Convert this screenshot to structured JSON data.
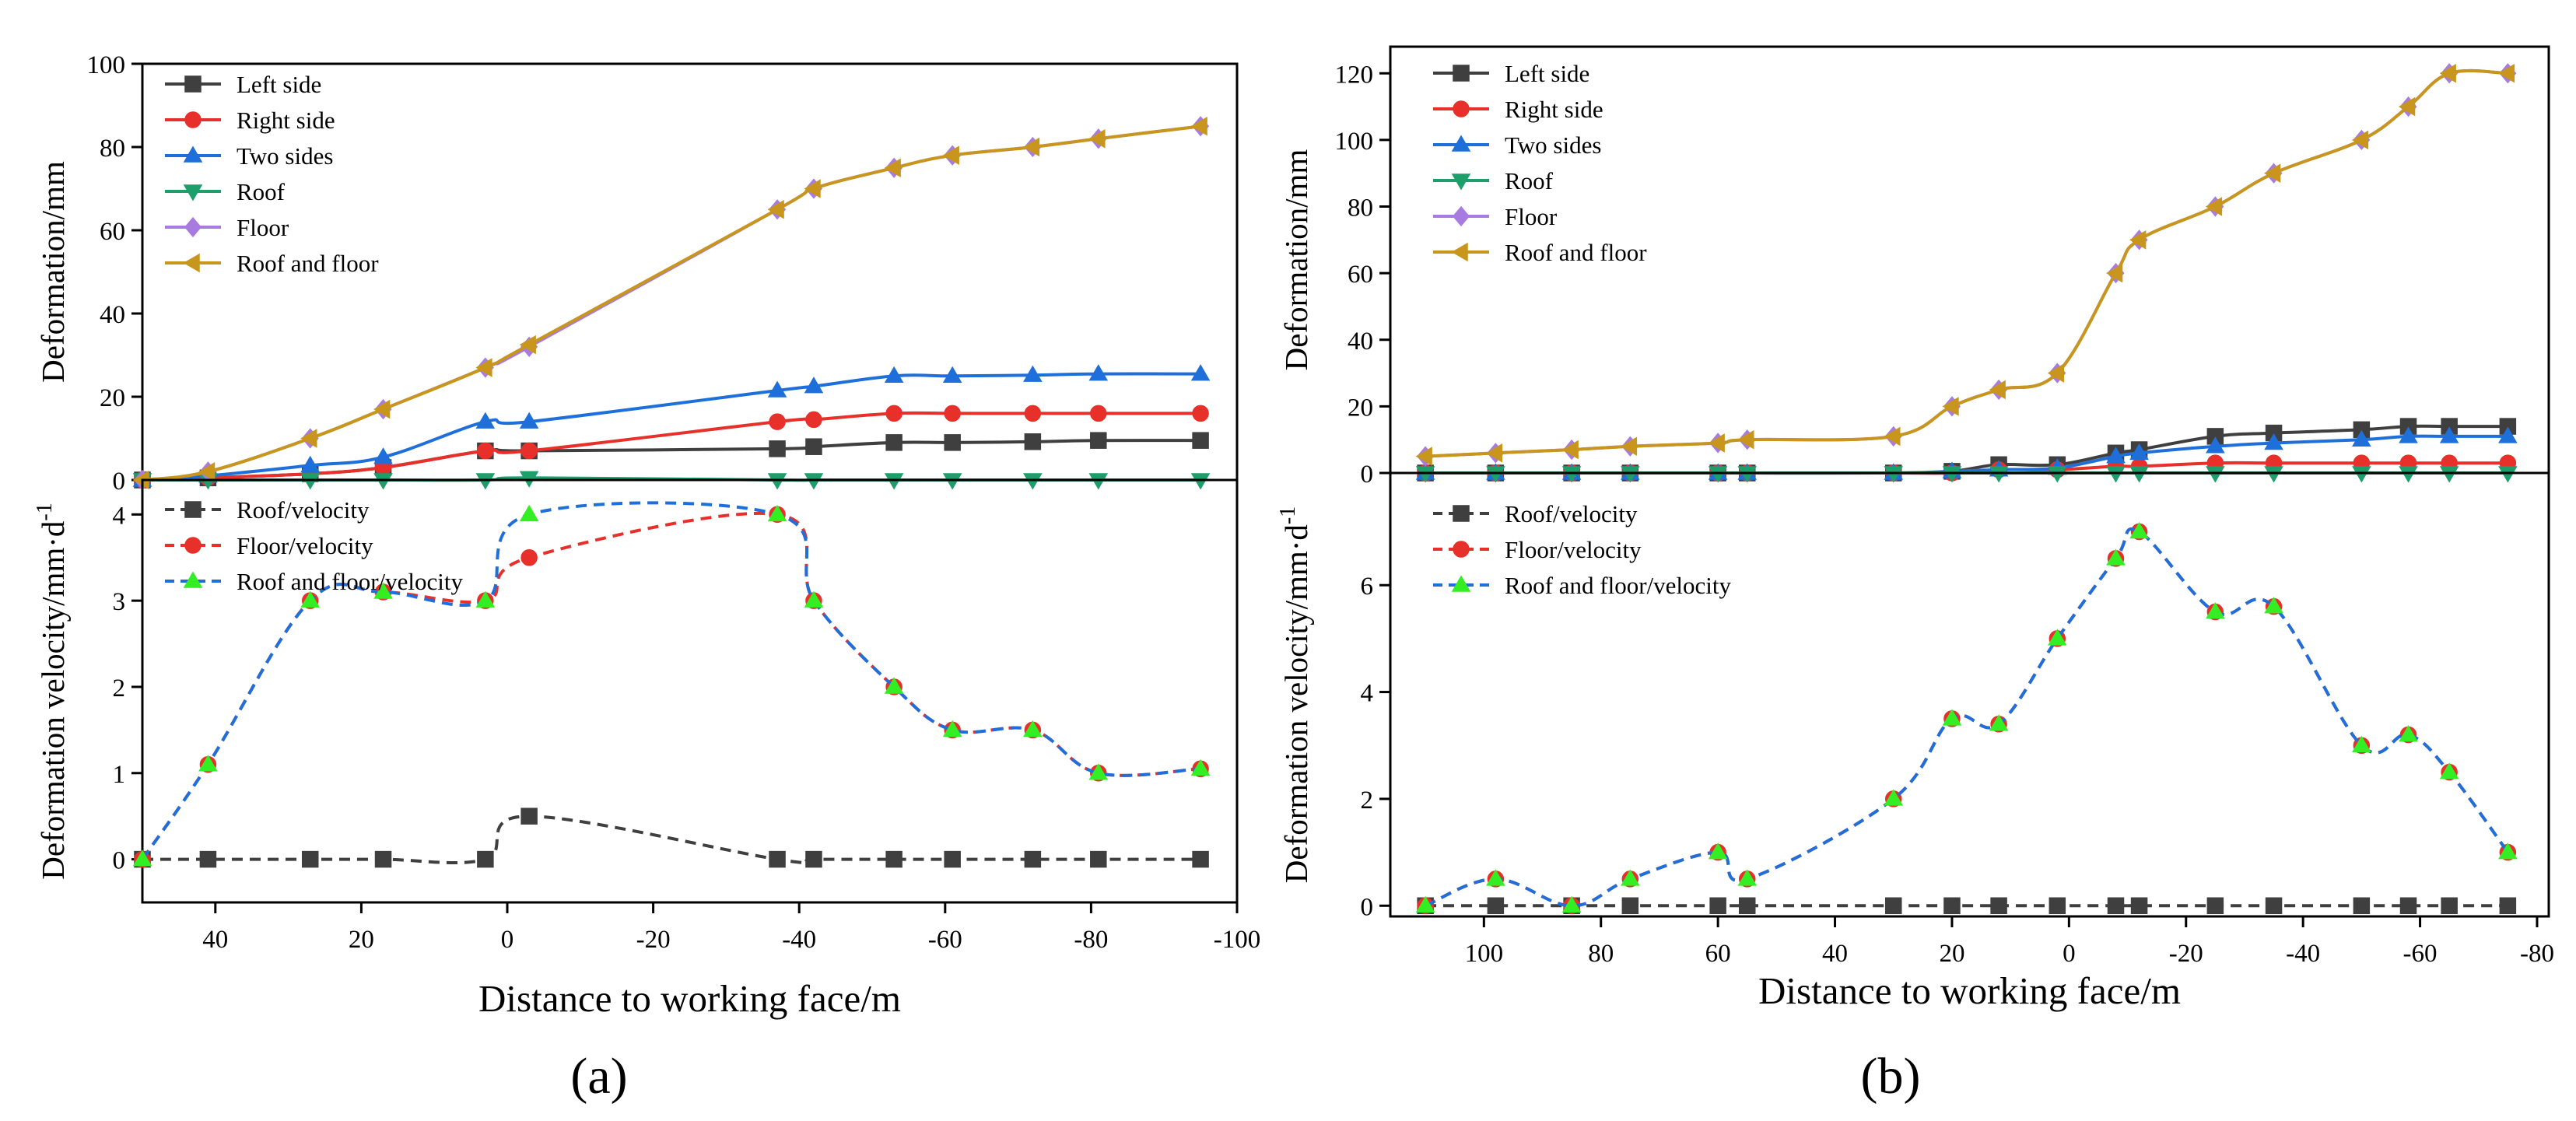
{
  "chart_data": [
    {
      "panel": "(a)",
      "type": "line",
      "xlabel": "Distance to working face/m",
      "x_reversed": true,
      "xlim": [
        50,
        -100
      ],
      "xticks": [
        "40",
        "20",
        "0",
        "-20",
        "-40",
        "-60",
        "-80",
        "-100"
      ],
      "top": {
        "ylabel": "Deformation/mm",
        "ylim": [
          0,
          100
        ],
        "yticks": [
          "0",
          "20",
          "40",
          "60",
          "80",
          "100"
        ],
        "legend_position": "top-left",
        "series": [
          {
            "name": "Left side",
            "color": "#3f3f3f",
            "marker": "square",
            "x": [
              50,
              41,
              27,
              17,
              3,
              -3,
              -37,
              -42,
              -53,
              -61,
              -72,
              -81,
              -95
            ],
            "values": [
              0,
              0.5,
              1.5,
              3,
              7,
              7,
              7.5,
              8,
              9,
              9,
              9.2,
              9.5,
              9.5
            ]
          },
          {
            "name": "Right side",
            "color": "#e8302b",
            "marker": "circle",
            "x": [
              50,
              41,
              27,
              17,
              3,
              -3,
              -37,
              -42,
              -53,
              -61,
              -72,
              -81,
              -95
            ],
            "values": [
              0,
              0.5,
              1.5,
              3,
              7,
              7,
              14,
              14.5,
              16,
              16,
              16,
              16,
              16
            ]
          },
          {
            "name": "Two sides",
            "color": "#1f6fdb",
            "marker": "triangle-up",
            "x": [
              50,
              41,
              27,
              17,
              3,
              -3,
              -37,
              -42,
              -53,
              -61,
              -72,
              -81,
              -95
            ],
            "values": [
              0,
              1,
              3.5,
              5.5,
              14,
              14,
              21.5,
              22.5,
              25,
              25,
              25.2,
              25.5,
              25.5
            ]
          },
          {
            "name": "Roof",
            "color": "#1e9e6a",
            "marker": "triangle-down",
            "x": [
              50,
              41,
              27,
              17,
              3,
              -3,
              -37,
              -42,
              -53,
              -61,
              -72,
              -81,
              -95
            ],
            "values": [
              0,
              0,
              0,
              0,
              0,
              0.5,
              0,
              0,
              0,
              0,
              0,
              0,
              0
            ]
          },
          {
            "name": "Floor",
            "color": "#a77be0",
            "marker": "diamond",
            "x": [
              50,
              41,
              27,
              17,
              3,
              -3,
              -37,
              -42,
              -53,
              -61,
              -72,
              -81,
              -95
            ],
            "values": [
              0,
              2,
              10,
              17,
              27,
              32,
              65,
              70,
              75,
              78,
              80,
              82,
              85
            ]
          },
          {
            "name": "Roof and floor",
            "color": "#c8961c",
            "marker": "triangle-left",
            "x": [
              50,
              41,
              27,
              17,
              3,
              -3,
              -37,
              -42,
              -53,
              -61,
              -72,
              -81,
              -95
            ],
            "values": [
              0,
              2,
              10,
              17,
              27,
              32.5,
              65,
              70,
              75,
              78,
              80,
              82,
              85
            ]
          }
        ]
      },
      "bottom": {
        "ylabel": "Deformation velocity/mm·d",
        "ylabel_sup": "-1",
        "ylim": [
          -0.5,
          4.4
        ],
        "yticks": [
          "0",
          "1",
          "2",
          "3",
          "4"
        ],
        "legend_position": "top-left",
        "series": [
          {
            "name": "Roof/velocity",
            "color": "#3f3f3f",
            "marker": "square",
            "x": [
              50,
              41,
              27,
              17,
              3,
              -3,
              -37,
              -42,
              -53,
              -61,
              -72,
              -81,
              -95
            ],
            "values": [
              0,
              0,
              0,
              0,
              0,
              0.5,
              0,
              0,
              0,
              0,
              0,
              0,
              0
            ]
          },
          {
            "name": "Floor/velocity",
            "color": "#e8302b",
            "marker": "circle",
            "x": [
              50,
              41,
              27,
              17,
              3,
              -3,
              -37,
              -42,
              -53,
              -61,
              -72,
              -81,
              -95
            ],
            "values": [
              0,
              1.1,
              3,
              3.1,
              3,
              3.5,
              4,
              3,
              2,
              1.5,
              1.5,
              1,
              1.05
            ]
          },
          {
            "name": "Roof and floor/velocity",
            "color": "#1f6fdb",
            "marker": "triangle-up",
            "marker_fill": "#33ee22",
            "x": [
              50,
              41,
              27,
              17,
              3,
              -3,
              -37,
              -42,
              -53,
              -61,
              -72,
              -81,
              -95
            ],
            "values": [
              0,
              1.1,
              3,
              3.1,
              3,
              4,
              4,
              3,
              2,
              1.5,
              1.5,
              1,
              1.05
            ]
          }
        ]
      }
    },
    {
      "panel": "(b)",
      "type": "line",
      "xlabel": "Distance to working face/m",
      "x_reversed": true,
      "xlim": [
        116,
        -82
      ],
      "xticks": [
        "100",
        "80",
        "60",
        "40",
        "20",
        "0",
        "-20",
        "-40",
        "-60",
        "-80"
      ],
      "top": {
        "ylabel": "Deformation/mm",
        "ylim": [
          0,
          128
        ],
        "yticks": [
          "0",
          "20",
          "40",
          "60",
          "80",
          "100",
          "120"
        ],
        "legend_position": "top-left",
        "series": [
          {
            "name": "Left side",
            "color": "#3f3f3f",
            "marker": "square",
            "x": [
              110,
              98,
              85,
              75,
              60,
              55,
              30,
              20,
              12,
              2,
              -8,
              -12,
              -25,
              -35,
              -50,
              -58,
              -65,
              -75
            ],
            "values": [
              0,
              0,
              0,
              0,
              0,
              0,
              0,
              0.5,
              2.5,
              2.5,
              6,
              7,
              11,
              12,
              13,
              14,
              14,
              14
            ]
          },
          {
            "name": "Right side",
            "color": "#e8302b",
            "marker": "circle",
            "x": [
              110,
              98,
              85,
              75,
              60,
              55,
              30,
              20,
              12,
              2,
              -8,
              -12,
              -25,
              -35,
              -50,
              -58,
              -65,
              -75
            ],
            "values": [
              0,
              0,
              0,
              0,
              0,
              0,
              0,
              0,
              1,
              1,
              2,
              2,
              3,
              3,
              3,
              3,
              3,
              3
            ]
          },
          {
            "name": "Two sides",
            "color": "#1f6fdb",
            "marker": "triangle-up",
            "x": [
              110,
              98,
              85,
              75,
              60,
              55,
              30,
              20,
              12,
              2,
              -8,
              -12,
              -25,
              -35,
              -50,
              -58,
              -65,
              -75
            ],
            "values": [
              0,
              0,
              0,
              0,
              0,
              0,
              0,
              0.5,
              1,
              1.5,
              5,
              6,
              8,
              9,
              10,
              11,
              11,
              11
            ]
          },
          {
            "name": "Roof",
            "color": "#1e9e6a",
            "marker": "triangle-down",
            "x": [
              110,
              98,
              85,
              75,
              60,
              55,
              30,
              20,
              12,
              2,
              -8,
              -12,
              -25,
              -35,
              -50,
              -58,
              -65,
              -75
            ],
            "values": [
              0,
              0,
              0,
              0,
              0,
              0,
              0,
              0,
              0,
              0,
              0,
              0,
              0,
              0,
              0,
              0,
              0,
              0
            ]
          },
          {
            "name": "Floor",
            "color": "#a77be0",
            "marker": "diamond",
            "x": [
              110,
              98,
              85,
              75,
              60,
              55,
              30,
              20,
              12,
              2,
              -8,
              -12,
              -25,
              -35,
              -50,
              -58,
              -65,
              -75
            ],
            "values": [
              5,
              6,
              7,
              8,
              9,
              10,
              11,
              20,
              25,
              30,
              60,
              70,
              80,
              90,
              100,
              110,
              120,
              120
            ]
          },
          {
            "name": "Roof and floor",
            "color": "#c8961c",
            "marker": "triangle-left",
            "x": [
              110,
              98,
              85,
              75,
              60,
              55,
              30,
              20,
              12,
              2,
              -8,
              -12,
              -25,
              -35,
              -50,
              -58,
              -65,
              -75
            ],
            "values": [
              5,
              6,
              7,
              8,
              9,
              10,
              11,
              20,
              25,
              30,
              60,
              70,
              80,
              90,
              100,
              110,
              120,
              120
            ]
          }
        ]
      },
      "bottom": {
        "ylabel": "Deformation velocity/mm·d",
        "ylabel_sup": "-1",
        "ylim": [
          -0.2,
          8.1
        ],
        "yticks": [
          "0",
          "2",
          "4",
          "6"
        ],
        "legend_position": "top-left",
        "series": [
          {
            "name": "Roof/velocity",
            "color": "#3f3f3f",
            "marker": "square",
            "x": [
              110,
              98,
              85,
              75,
              60,
              55,
              30,
              20,
              12,
              2,
              -8,
              -12,
              -25,
              -35,
              -50,
              -58,
              -65,
              -75
            ],
            "values": [
              0,
              0,
              0,
              0,
              0,
              0,
              0,
              0,
              0,
              0,
              0,
              0,
              0,
              0,
              0,
              0,
              0,
              0
            ]
          },
          {
            "name": "Floor/velocity",
            "color": "#e8302b",
            "marker": "circle",
            "x": [
              110,
              98,
              85,
              75,
              60,
              55,
              30,
              20,
              12,
              2,
              -8,
              -12,
              -25,
              -35,
              -50,
              -58,
              -65,
              -75
            ],
            "values": [
              0,
              0.5,
              0,
              0.5,
              1,
              0.5,
              2,
              3.5,
              3.4,
              5,
              6.5,
              7,
              5.5,
              5.6,
              3,
              3.2,
              2.5,
              1
            ]
          },
          {
            "name": "Roof and floor/velocity",
            "color": "#1f6fdb",
            "marker": "triangle-up",
            "marker_fill": "#33ee22",
            "x": [
              110,
              98,
              85,
              75,
              60,
              55,
              30,
              20,
              12,
              2,
              -8,
              -12,
              -25,
              -35,
              -50,
              -58,
              -65,
              -75
            ],
            "values": [
              0,
              0.5,
              0,
              0.5,
              1,
              0.5,
              2,
              3.5,
              3.4,
              5,
              6.5,
              7,
              5.5,
              5.6,
              3,
              3.2,
              2.5,
              1
            ]
          }
        ]
      }
    }
  ]
}
